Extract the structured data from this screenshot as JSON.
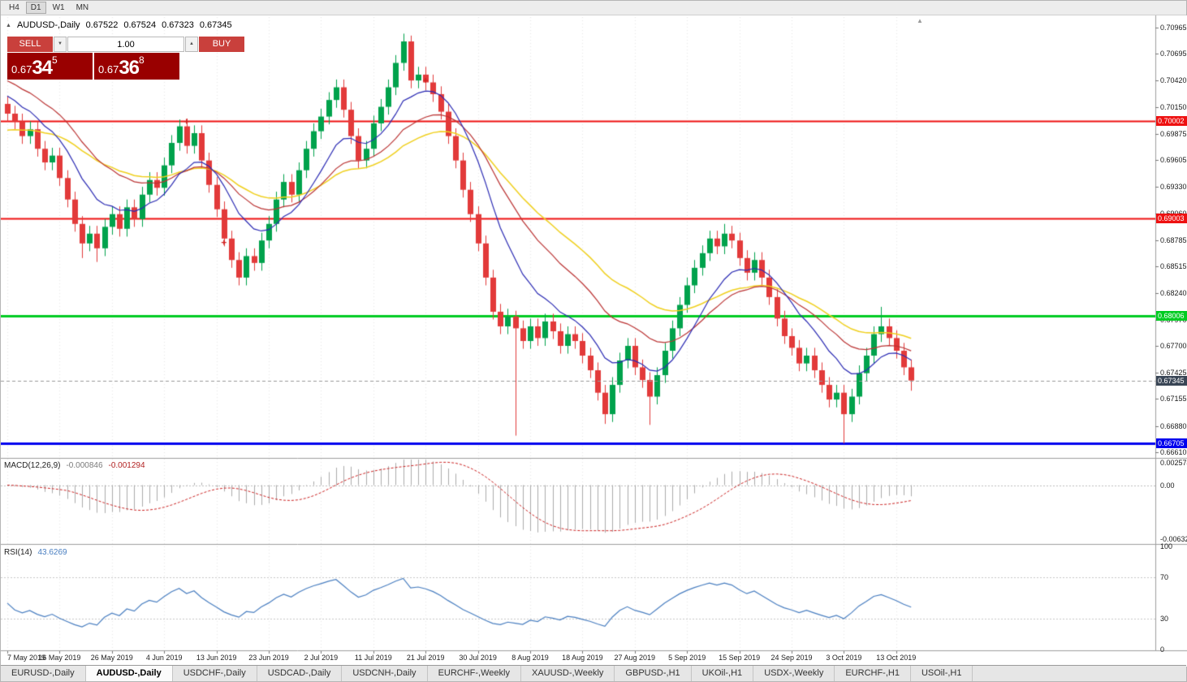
{
  "toolbar": {
    "timeframes": [
      "H4",
      "D1",
      "W1",
      "MN"
    ],
    "active": "D1"
  },
  "icons": {
    "collapse": "▲",
    "shift": "▲",
    "spin_up": "▲",
    "spin_down": "▼"
  },
  "chart_header": {
    "symbol": "AUDUSD-,Daily",
    "open": "0.67522",
    "high": "0.67524",
    "low": "0.67323",
    "close": "0.67345"
  },
  "trade_panel": {
    "sell_label": "SELL",
    "buy_label": "BUY",
    "volume": "1.00",
    "sell_price": {
      "prefix": "0.67",
      "big": "34",
      "sup": "5"
    },
    "buy_price": {
      "prefix": "0.67",
      "big": "36",
      "sup": "8"
    }
  },
  "price_axis": {
    "ticks": [
      "0.70965",
      "0.70695",
      "0.70420",
      "0.70150",
      "0.69875",
      "0.69605",
      "0.69330",
      "0.69060",
      "0.68785",
      "0.68515",
      "0.68240",
      "0.67970",
      "0.67700",
      "0.67425",
      "0.67155",
      "0.66880",
      "0.66610"
    ],
    "current_price": "0.67345"
  },
  "hlines": [
    {
      "price": 0.70002,
      "label": "0.70002",
      "color": "#ee1111",
      "thickness": 2
    },
    {
      "price": 0.69003,
      "label": "0.69003",
      "color": "#ee1111",
      "thickness": 2
    },
    {
      "price": 0.68006,
      "label": "0.68006",
      "color": "#00cc22",
      "thickness": 3
    },
    {
      "price": 0.66705,
      "label": "0.66705",
      "color": "#0000ee",
      "thickness": 3
    }
  ],
  "macd_panel": {
    "name": "MACD(12,26,9)",
    "value_main": "-0.000846",
    "value_signal": "-0.001294",
    "scale": {
      "top": "0.002574",
      "zero": "0.00",
      "bottom": "-0.006326"
    }
  },
  "rsi_panel": {
    "name": "RSI(14)",
    "value": "43.6269",
    "scale": [
      "100",
      "70",
      "30",
      "0"
    ],
    "levels": [
      70,
      30
    ]
  },
  "date_axis": {
    "labels": [
      "7 May 2019",
      "16 May 2019",
      "26 May 2019",
      "4 Jun 2019",
      "13 Jun 2019",
      "23 Jun 2019",
      "2 Jul 2019",
      "11 Jul 2019",
      "21 Jul 2019",
      "30 Jul 2019",
      "8 Aug 2019",
      "18 Aug 2019",
      "27 Aug 2019",
      "5 Sep 2019",
      "15 Sep 2019",
      "24 Sep 2019",
      "3 Oct 2019",
      "13 Oct 2019"
    ]
  },
  "tabs": [
    {
      "label": "EURUSD-,Daily",
      "active": false
    },
    {
      "label": "AUDUSD-,Daily",
      "active": true
    },
    {
      "label": "USDCHF-,Daily",
      "active": false
    },
    {
      "label": "USDCAD-,Daily",
      "active": false
    },
    {
      "label": "USDCNH-,Daily",
      "active": false
    },
    {
      "label": "EURCHF-,Weekly",
      "active": false
    },
    {
      "label": "XAUUSD-,Weekly",
      "active": false
    },
    {
      "label": "GBPUSD-,H1",
      "active": false
    },
    {
      "label": "UKOil-,H1",
      "active": false
    },
    {
      "label": "USDX-,Weekly",
      "active": false
    },
    {
      "label": "EURCHF-,H1",
      "active": false
    },
    {
      "label": "USOil-,H1",
      "active": false
    }
  ],
  "chart_data": {
    "type": "candlestick",
    "symbol": "AUDUSD-",
    "timeframe": "Daily",
    "y_range": [
      0.6656,
      0.7107
    ],
    "labels_every_n_candles": 7,
    "colors": {
      "up": "#00a24c",
      "down": "#e23a3a"
    },
    "candles": [
      [
        0.7018,
        0.7026,
        0.7,
        0.7008
      ],
      [
        0.7008,
        0.7016,
        0.6992,
        0.7
      ],
      [
        0.7,
        0.7008,
        0.6977,
        0.6985
      ],
      [
        0.6985,
        0.7,
        0.6977,
        0.6992
      ],
      [
        0.6992,
        0.7,
        0.6964,
        0.6972
      ],
      [
        0.6972,
        0.698,
        0.695,
        0.6958
      ],
      [
        0.6958,
        0.6973,
        0.695,
        0.6965
      ],
      [
        0.6965,
        0.6973,
        0.6934,
        0.6942
      ],
      [
        0.6942,
        0.695,
        0.6912,
        0.692
      ],
      [
        0.692,
        0.6928,
        0.6887,
        0.6895
      ],
      [
        0.6895,
        0.6903,
        0.686,
        0.6875
      ],
      [
        0.6875,
        0.6893,
        0.6867,
        0.6885
      ],
      [
        0.6885,
        0.6893,
        0.6856,
        0.687
      ],
      [
        0.687,
        0.69,
        0.6862,
        0.6892
      ],
      [
        0.6892,
        0.6913,
        0.6884,
        0.6905
      ],
      [
        0.6905,
        0.6913,
        0.6882,
        0.689
      ],
      [
        0.689,
        0.692,
        0.6882,
        0.6912
      ],
      [
        0.6912,
        0.692,
        0.6892,
        0.69
      ],
      [
        0.69,
        0.6933,
        0.6892,
        0.6925
      ],
      [
        0.6925,
        0.6948,
        0.6917,
        0.694
      ],
      [
        0.694,
        0.6948,
        0.6924,
        0.6932
      ],
      [
        0.6932,
        0.6963,
        0.6924,
        0.6955
      ],
      [
        0.6955,
        0.6986,
        0.6947,
        0.6978
      ],
      [
        0.6978,
        0.7002,
        0.697,
        0.6995
      ],
      [
        0.6995,
        0.7003,
        0.6967,
        0.6975
      ],
      [
        0.6975,
        0.6996,
        0.6967,
        0.6988
      ],
      [
        0.6988,
        0.6996,
        0.6952,
        0.696
      ],
      [
        0.696,
        0.6968,
        0.6927,
        0.6935
      ],
      [
        0.6935,
        0.6943,
        0.6902,
        0.691
      ],
      [
        0.691,
        0.6918,
        0.6872,
        0.688
      ],
      [
        0.688,
        0.6888,
        0.685,
        0.6858
      ],
      [
        0.6858,
        0.6866,
        0.6832,
        0.684
      ],
      [
        0.684,
        0.687,
        0.6832,
        0.6862
      ],
      [
        0.6862,
        0.687,
        0.6847,
        0.6855
      ],
      [
        0.6855,
        0.6886,
        0.6847,
        0.6878
      ],
      [
        0.6878,
        0.6903,
        0.687,
        0.6895
      ],
      [
        0.6895,
        0.6928,
        0.6887,
        0.692
      ],
      [
        0.692,
        0.6946,
        0.6912,
        0.6938
      ],
      [
        0.6938,
        0.6946,
        0.6917,
        0.6925
      ],
      [
        0.6925,
        0.6958,
        0.6917,
        0.695
      ],
      [
        0.695,
        0.698,
        0.6942,
        0.6972
      ],
      [
        0.6972,
        0.6998,
        0.6964,
        0.699
      ],
      [
        0.699,
        0.7013,
        0.6982,
        0.7005
      ],
      [
        0.7005,
        0.703,
        0.6997,
        0.7022
      ],
      [
        0.7022,
        0.7043,
        0.7014,
        0.7035
      ],
      [
        0.7035,
        0.7043,
        0.7004,
        0.7012
      ],
      [
        0.7012,
        0.702,
        0.6977,
        0.6985
      ],
      [
        0.6985,
        0.6993,
        0.6952,
        0.696
      ],
      [
        0.696,
        0.698,
        0.6952,
        0.6972
      ],
      [
        0.6972,
        0.7006,
        0.6964,
        0.6998
      ],
      [
        0.6998,
        0.7023,
        0.699,
        0.7015
      ],
      [
        0.7015,
        0.7043,
        0.7007,
        0.7035
      ],
      [
        0.7035,
        0.7068,
        0.7027,
        0.706
      ],
      [
        0.706,
        0.709,
        0.7052,
        0.7082
      ],
      [
        0.7082,
        0.7088,
        0.7034,
        0.7042
      ],
      [
        0.7042,
        0.7056,
        0.7034,
        0.7048
      ],
      [
        0.7048,
        0.7056,
        0.7032,
        0.704
      ],
      [
        0.704,
        0.7048,
        0.702,
        0.7028
      ],
      [
        0.7028,
        0.7036,
        0.7002,
        0.701
      ],
      [
        0.701,
        0.7018,
        0.6977,
        0.6985
      ],
      [
        0.6985,
        0.6993,
        0.6952,
        0.696
      ],
      [
        0.696,
        0.6968,
        0.6922,
        0.693
      ],
      [
        0.693,
        0.6938,
        0.6897,
        0.6905
      ],
      [
        0.6905,
        0.6913,
        0.6867,
        0.6875
      ],
      [
        0.6875,
        0.6883,
        0.6832,
        0.684
      ],
      [
        0.684,
        0.6848,
        0.6797,
        0.6805
      ],
      [
        0.6805,
        0.6813,
        0.6782,
        0.679
      ],
      [
        0.679,
        0.6808,
        0.6782,
        0.68
      ],
      [
        0.68,
        0.6806,
        0.6678,
        0.6788
      ],
      [
        0.6788,
        0.6796,
        0.6767,
        0.6775
      ],
      [
        0.6775,
        0.6798,
        0.6767,
        0.679
      ],
      [
        0.679,
        0.6798,
        0.677,
        0.6778
      ],
      [
        0.6778,
        0.6803,
        0.677,
        0.6795
      ],
      [
        0.6795,
        0.6803,
        0.6777,
        0.6785
      ],
      [
        0.6785,
        0.6793,
        0.6762,
        0.677
      ],
      [
        0.677,
        0.679,
        0.6762,
        0.6782
      ],
      [
        0.6782,
        0.679,
        0.6767,
        0.6775
      ],
      [
        0.6775,
        0.6783,
        0.6752,
        0.676
      ],
      [
        0.676,
        0.6768,
        0.6737,
        0.6745
      ],
      [
        0.6745,
        0.6753,
        0.6714,
        0.6722
      ],
      [
        0.6722,
        0.673,
        0.669,
        0.67
      ],
      [
        0.67,
        0.6738,
        0.6692,
        0.673
      ],
      [
        0.673,
        0.6763,
        0.6722,
        0.6755
      ],
      [
        0.6755,
        0.6778,
        0.6747,
        0.677
      ],
      [
        0.677,
        0.6778,
        0.674,
        0.6748
      ],
      [
        0.6748,
        0.6756,
        0.6727,
        0.6735
      ],
      [
        0.6735,
        0.6743,
        0.6689,
        0.6718
      ],
      [
        0.6718,
        0.6748,
        0.671,
        0.674
      ],
      [
        0.674,
        0.6773,
        0.6732,
        0.6765
      ],
      [
        0.6765,
        0.6796,
        0.6757,
        0.6788
      ],
      [
        0.6788,
        0.682,
        0.678,
        0.6812
      ],
      [
        0.6812,
        0.684,
        0.6804,
        0.6832
      ],
      [
        0.6832,
        0.6858,
        0.6824,
        0.685
      ],
      [
        0.685,
        0.6873,
        0.6842,
        0.6865
      ],
      [
        0.6865,
        0.6888,
        0.6857,
        0.688
      ],
      [
        0.688,
        0.6888,
        0.6864,
        0.6872
      ],
      [
        0.6872,
        0.6895,
        0.6864,
        0.6885
      ],
      [
        0.6885,
        0.6893,
        0.687,
        0.6878
      ],
      [
        0.6878,
        0.6886,
        0.6852,
        0.686
      ],
      [
        0.686,
        0.6868,
        0.6837,
        0.6845
      ],
      [
        0.6845,
        0.6866,
        0.6837,
        0.6858
      ],
      [
        0.6858,
        0.6866,
        0.6832,
        0.684
      ],
      [
        0.684,
        0.6848,
        0.6812,
        0.682
      ],
      [
        0.682,
        0.6828,
        0.679,
        0.6798
      ],
      [
        0.6798,
        0.6806,
        0.6772,
        0.678
      ],
      [
        0.678,
        0.6788,
        0.676,
        0.6768
      ],
      [
        0.6768,
        0.6776,
        0.6744,
        0.6752
      ],
      [
        0.6752,
        0.6768,
        0.6744,
        0.676
      ],
      [
        0.676,
        0.6768,
        0.6737,
        0.6745
      ],
      [
        0.6745,
        0.6753,
        0.6722,
        0.673
      ],
      [
        0.673,
        0.6738,
        0.6707,
        0.6715
      ],
      [
        0.6715,
        0.673,
        0.6707,
        0.6722
      ],
      [
        0.6722,
        0.673,
        0.667,
        0.67
      ],
      [
        0.67,
        0.6726,
        0.6692,
        0.6718
      ],
      [
        0.6718,
        0.675,
        0.671,
        0.6742
      ],
      [
        0.6742,
        0.6768,
        0.6734,
        0.676
      ],
      [
        0.676,
        0.679,
        0.6752,
        0.6782
      ],
      [
        0.6782,
        0.681,
        0.6774,
        0.679
      ],
      [
        0.679,
        0.6798,
        0.677,
        0.6778
      ],
      [
        0.6778,
        0.6786,
        0.6757,
        0.6765
      ],
      [
        0.6765,
        0.6773,
        0.674,
        0.6748
      ],
      [
        0.6748,
        0.6756,
        0.6724,
        0.67345
      ]
    ],
    "moving_averages": [
      {
        "name": "ema-slow-yellow",
        "period": 34,
        "seed": 0.699,
        "color": "#f0d01e",
        "width": 1.5
      },
      {
        "name": "ema-mid-red",
        "period": 21,
        "seed": 0.7045,
        "color": "#bb3333",
        "width": 1.2
      },
      {
        "name": "ema-fast-blue",
        "period": 10,
        "seed": 0.703,
        "color": "#2b2bb4",
        "width": 1.2
      }
    ],
    "macd": {
      "fast": 12,
      "slow": 26,
      "signal": 9,
      "display_max": 0.003,
      "display_min": -0.0068
    },
    "rsi": {
      "period": 14,
      "last": 43.6269,
      "range": [
        0,
        100
      ]
    },
    "markers": [
      {
        "index": 24,
        "price": 0.7
      },
      {
        "index": 29,
        "price": 0.6876
      },
      {
        "index": 56,
        "price": 0.7042
      }
    ]
  }
}
